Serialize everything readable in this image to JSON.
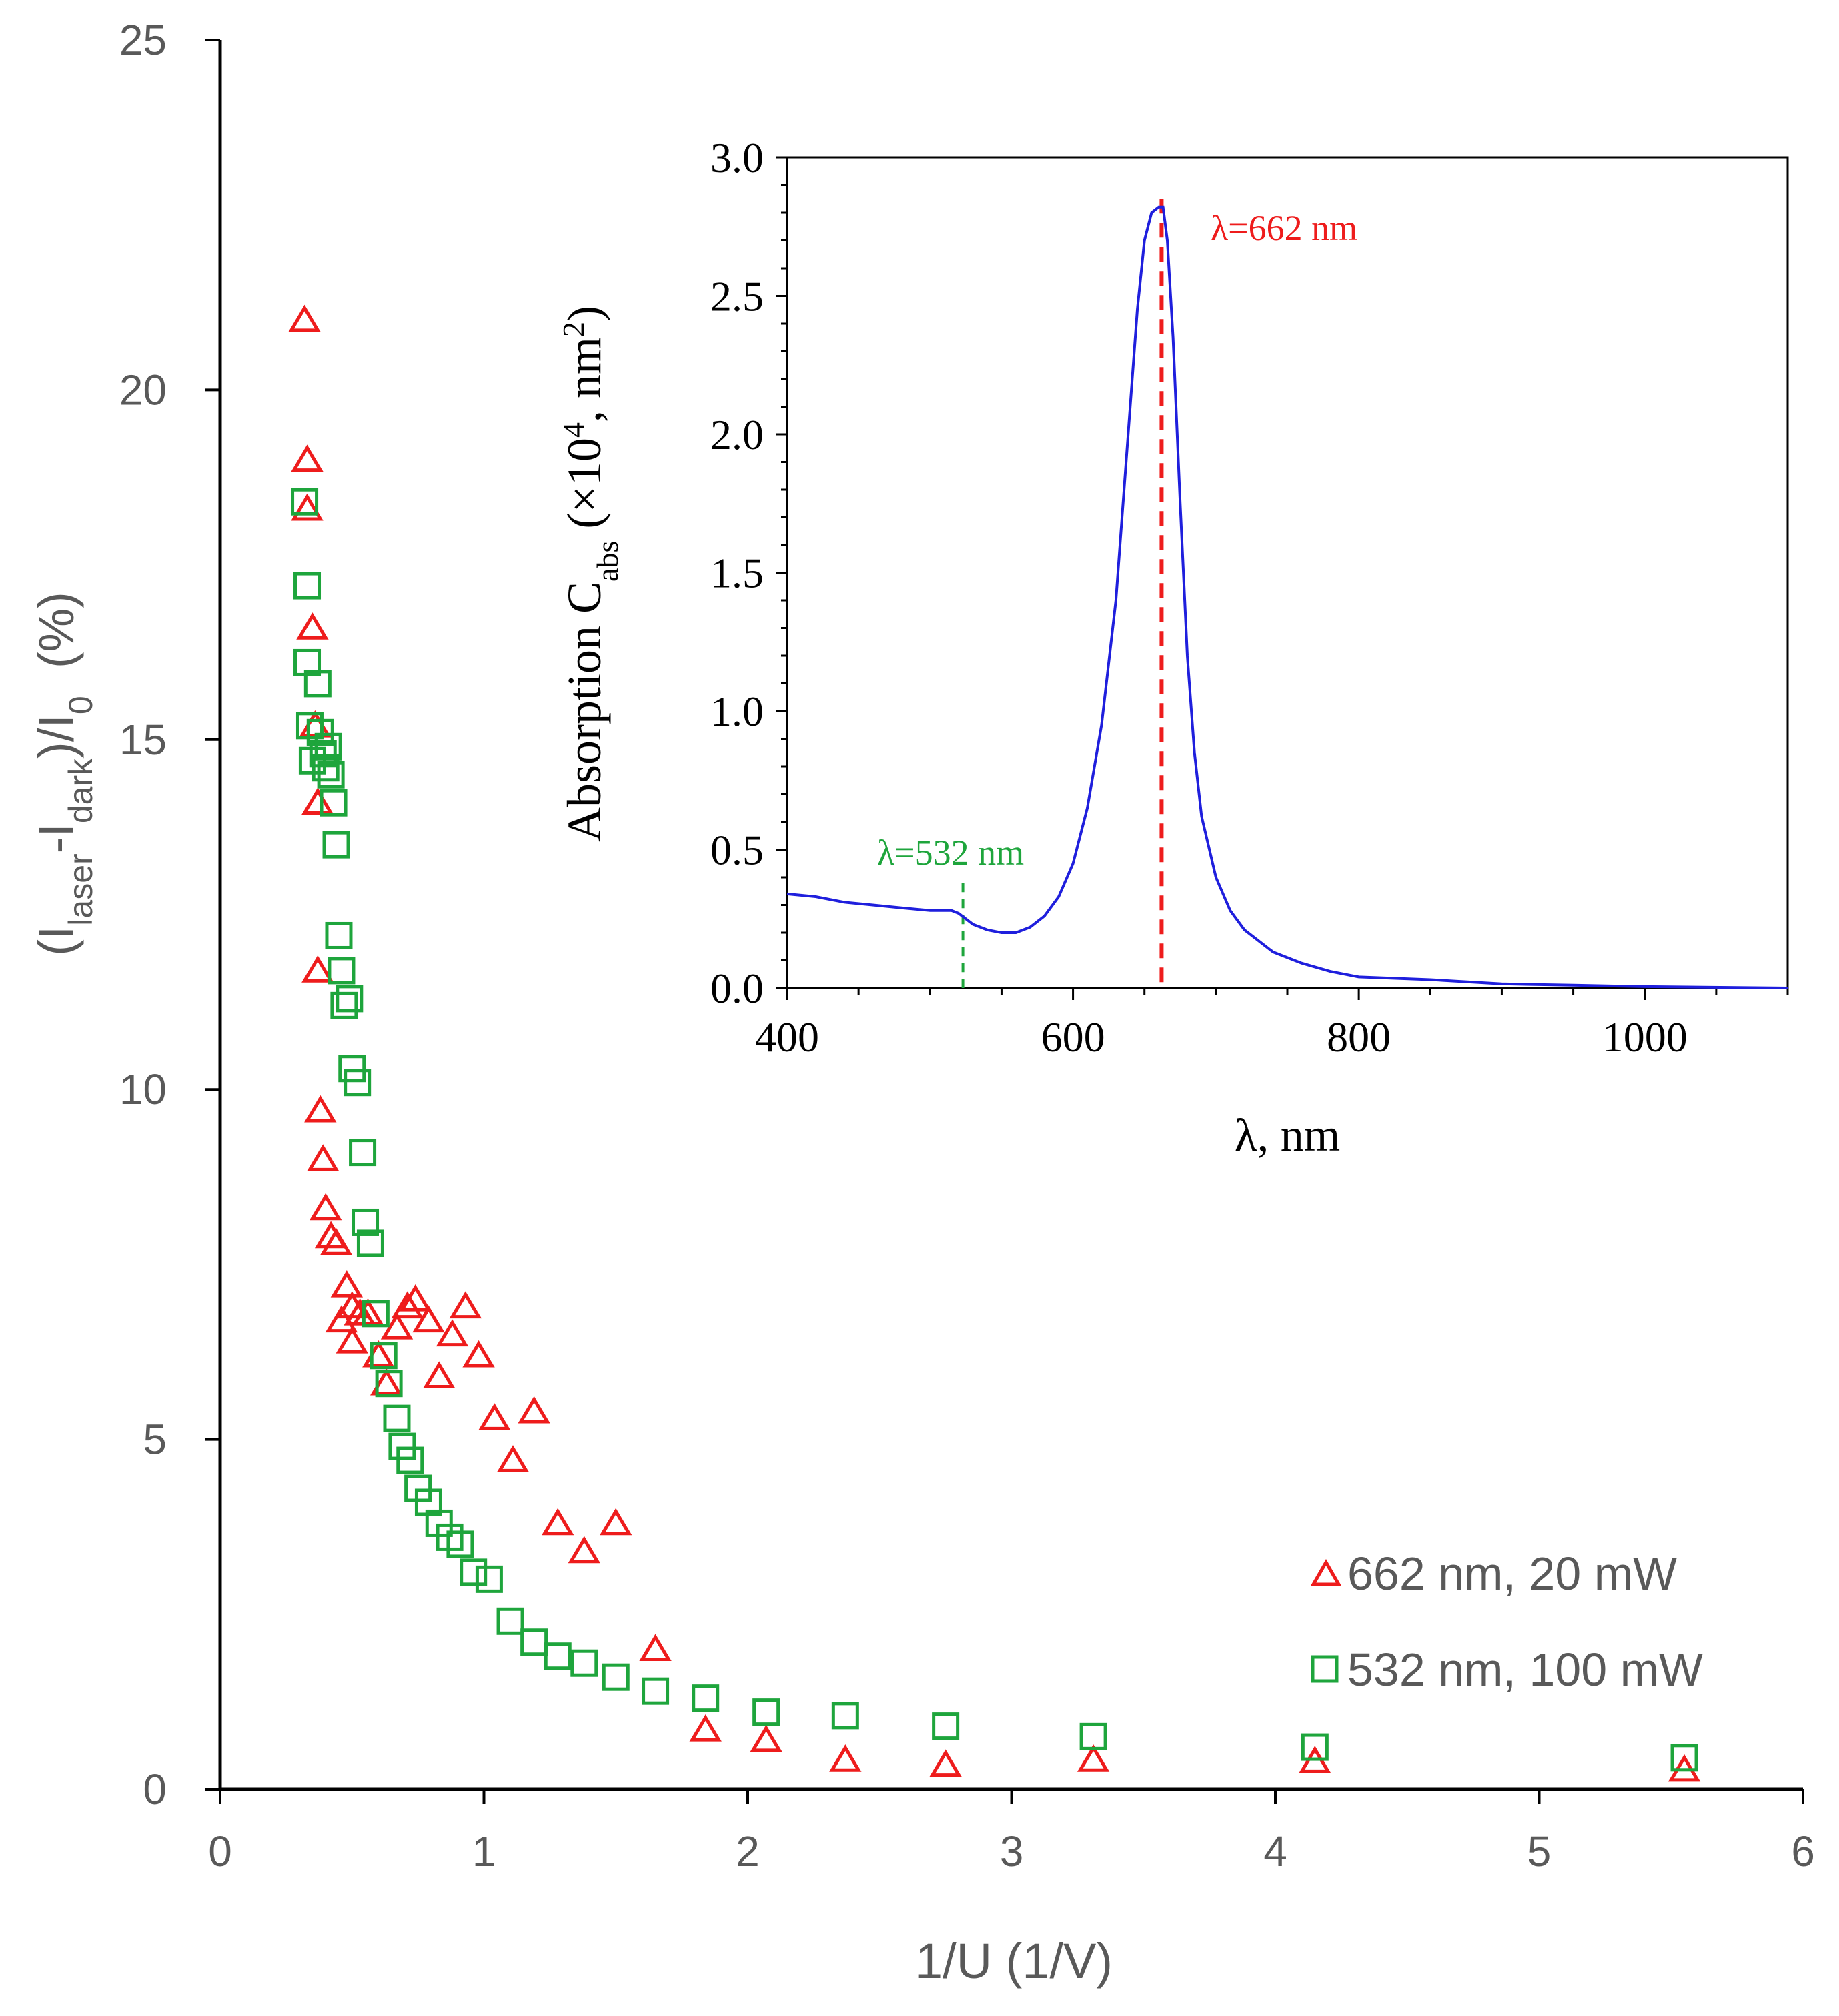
{
  "chart_data": [
    {
      "type": "scatter",
      "name": "main-photoresponse",
      "xlabel": "1/U (1/V)",
      "ylabel": {
        "open": "(I",
        "sub1": "laser",
        "minus": "-I",
        "sub2": "dark",
        "mid": ")/I",
        "sub3": "0",
        "close": "  (%)"
      },
      "xlim": [
        0,
        6
      ],
      "ylim": [
        0,
        25
      ],
      "xticks": [
        "0",
        "1",
        "2",
        "3",
        "4",
        "5",
        "6"
      ],
      "yticks": [
        "0",
        "5",
        "10",
        "15",
        "20",
        "25"
      ],
      "legend_position": "bottom-right",
      "series": [
        {
          "name": "662 nm, 20 mW",
          "marker": "triangle",
          "color": "#ee1c1c",
          "points": [
            [
              0.32,
              21.0
            ],
            [
              0.33,
              19.0
            ],
            [
              0.33,
              18.3
            ],
            [
              0.35,
              16.6
            ],
            [
              0.36,
              15.2
            ],
            [
              0.37,
              14.1
            ],
            [
              0.37,
              11.7
            ],
            [
              0.38,
              9.7
            ],
            [
              0.39,
              9.0
            ],
            [
              0.4,
              8.3
            ],
            [
              0.42,
              7.9
            ],
            [
              0.44,
              7.8
            ],
            [
              0.46,
              6.7
            ],
            [
              0.48,
              7.2
            ],
            [
              0.5,
              6.9
            ],
            [
              0.5,
              6.4
            ],
            [
              0.53,
              6.8
            ],
            [
              0.56,
              6.8
            ],
            [
              0.6,
              6.2
            ],
            [
              0.63,
              5.8
            ],
            [
              0.67,
              6.6
            ],
            [
              0.71,
              6.9
            ],
            [
              0.74,
              7.0
            ],
            [
              0.79,
              6.7
            ],
            [
              0.83,
              5.9
            ],
            [
              0.88,
              6.5
            ],
            [
              0.93,
              6.9
            ],
            [
              0.98,
              6.2
            ],
            [
              1.04,
              5.3
            ],
            [
              1.11,
              4.7
            ],
            [
              1.19,
              5.4
            ],
            [
              1.28,
              3.8
            ],
            [
              1.38,
              3.4
            ],
            [
              1.5,
              3.8
            ],
            [
              1.65,
              2.0
            ],
            [
              1.84,
              0.85
            ],
            [
              2.07,
              0.7
            ],
            [
              2.37,
              0.42
            ],
            [
              2.75,
              0.35
            ],
            [
              3.31,
              0.42
            ],
            [
              4.15,
              0.4
            ],
            [
              5.55,
              0.28
            ]
          ]
        },
        {
          "name": "532 nm, 100 mW",
          "marker": "square",
          "color": "#1ea53c",
          "points": [
            [
              0.32,
              18.4
            ],
            [
              0.33,
              17.2
            ],
            [
              0.33,
              16.1
            ],
            [
              0.34,
              15.2
            ],
            [
              0.35,
              14.7
            ],
            [
              0.37,
              15.8
            ],
            [
              0.38,
              15.1
            ],
            [
              0.39,
              14.8
            ],
            [
              0.4,
              14.6
            ],
            [
              0.41,
              14.9
            ],
            [
              0.42,
              14.5
            ],
            [
              0.43,
              14.1
            ],
            [
              0.44,
              13.5
            ],
            [
              0.45,
              12.2
            ],
            [
              0.46,
              11.7
            ],
            [
              0.47,
              11.2
            ],
            [
              0.49,
              11.3
            ],
            [
              0.5,
              10.3
            ],
            [
              0.52,
              10.1
            ],
            [
              0.54,
              9.1
            ],
            [
              0.55,
              8.1
            ],
            [
              0.57,
              7.8
            ],
            [
              0.59,
              6.8
            ],
            [
              0.62,
              6.2
            ],
            [
              0.64,
              5.8
            ],
            [
              0.67,
              5.3
            ],
            [
              0.69,
              4.9
            ],
            [
              0.72,
              4.7
            ],
            [
              0.75,
              4.3
            ],
            [
              0.79,
              4.1
            ],
            [
              0.83,
              3.8
            ],
            [
              0.87,
              3.6
            ],
            [
              0.91,
              3.5
            ],
            [
              0.96,
              3.1
            ],
            [
              1.02,
              3.0
            ],
            [
              1.1,
              2.4
            ],
            [
              1.19,
              2.1
            ],
            [
              1.28,
              1.9
            ],
            [
              1.38,
              1.8
            ],
            [
              1.5,
              1.6
            ],
            [
              1.65,
              1.4
            ],
            [
              1.84,
              1.3
            ],
            [
              2.07,
              1.1
            ],
            [
              2.37,
              1.05
            ],
            [
              2.75,
              0.9
            ],
            [
              3.31,
              0.75
            ],
            [
              4.15,
              0.6
            ],
            [
              5.55,
              0.45
            ]
          ]
        }
      ]
    },
    {
      "type": "line",
      "name": "inset-absorption",
      "xlabel": "λ, nm",
      "ylabel": {
        "prefix": "Absorption C",
        "sub": "abs",
        "mid": " (×10",
        "sup1": "4",
        "mid2": ", nm",
        "sup2": "2",
        "close": ")"
      },
      "xlim": [
        400,
        1100
      ],
      "ylim": [
        0,
        3.0
      ],
      "xticks": [
        "400",
        "600",
        "800",
        "1000"
      ],
      "yticks": [
        "0.0",
        "0.5",
        "1.0",
        "1.5",
        "2.0",
        "2.5",
        "3.0"
      ],
      "series": [
        {
          "name": "C_abs",
          "color": "#1f1fdd",
          "x": [
            400,
            420,
            440,
            460,
            480,
            500,
            510,
            515,
            520,
            530,
            540,
            550,
            560,
            570,
            580,
            590,
            600,
            610,
            620,
            630,
            640,
            645,
            650,
            655,
            660,
            663,
            666,
            670,
            675,
            680,
            685,
            690,
            700,
            710,
            720,
            740,
            760,
            780,
            800,
            850,
            900,
            950,
            1000,
            1100
          ],
          "y": [
            0.34,
            0.33,
            0.31,
            0.3,
            0.29,
            0.28,
            0.28,
            0.28,
            0.27,
            0.23,
            0.21,
            0.2,
            0.2,
            0.22,
            0.26,
            0.33,
            0.45,
            0.65,
            0.95,
            1.4,
            2.1,
            2.45,
            2.7,
            2.8,
            2.82,
            2.82,
            2.7,
            2.35,
            1.75,
            1.2,
            0.85,
            0.62,
            0.4,
            0.28,
            0.21,
            0.13,
            0.09,
            0.06,
            0.04,
            0.03,
            0.015,
            0.01,
            0.005,
            0.0
          ]
        }
      ],
      "annotations": [
        {
          "text": "λ=662 nm",
          "x": 662,
          "color": "#ee1c1c"
        },
        {
          "text": "λ=532 nm",
          "x": 532,
          "color": "#1ea53c"
        }
      ]
    }
  ]
}
